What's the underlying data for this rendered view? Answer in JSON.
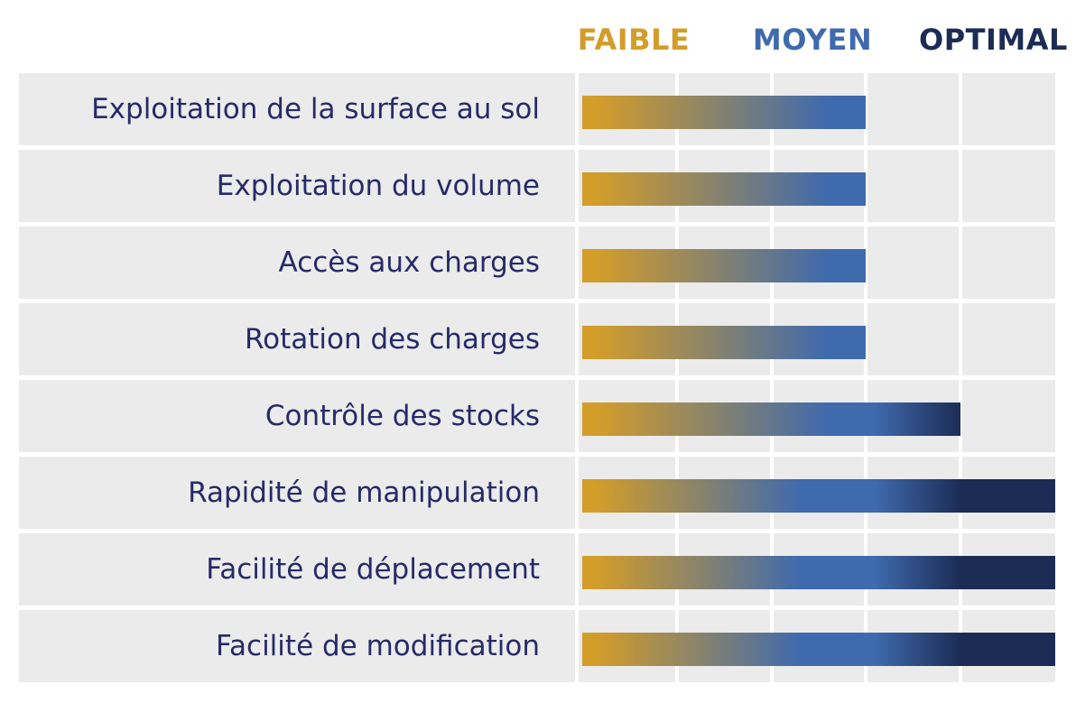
{
  "colors": {
    "faible": "#d39d2a",
    "moyen": "#3f6aad",
    "optimal": "#1c2c55",
    "label_text": "#262a68",
    "row_background": "#ebebeb"
  },
  "chart_data": {
    "type": "bar",
    "orientation": "horizontal",
    "scale_labels": [
      "FAIBLE",
      "MOYEN",
      "OPTIMAL"
    ],
    "x_levels": 5,
    "categories": [
      "Exploitation de la surface au sol",
      "Exploitation du volume",
      "Accès aux charges",
      "Rotation des charges",
      "Contrôle des stocks",
      "Rapidité de manipulation",
      "Facilité de déplacement",
      "Facilité de modification"
    ],
    "values": [
      3,
      3,
      3,
      3,
      4,
      5,
      5,
      5
    ],
    "grid": true,
    "legend": "none"
  }
}
